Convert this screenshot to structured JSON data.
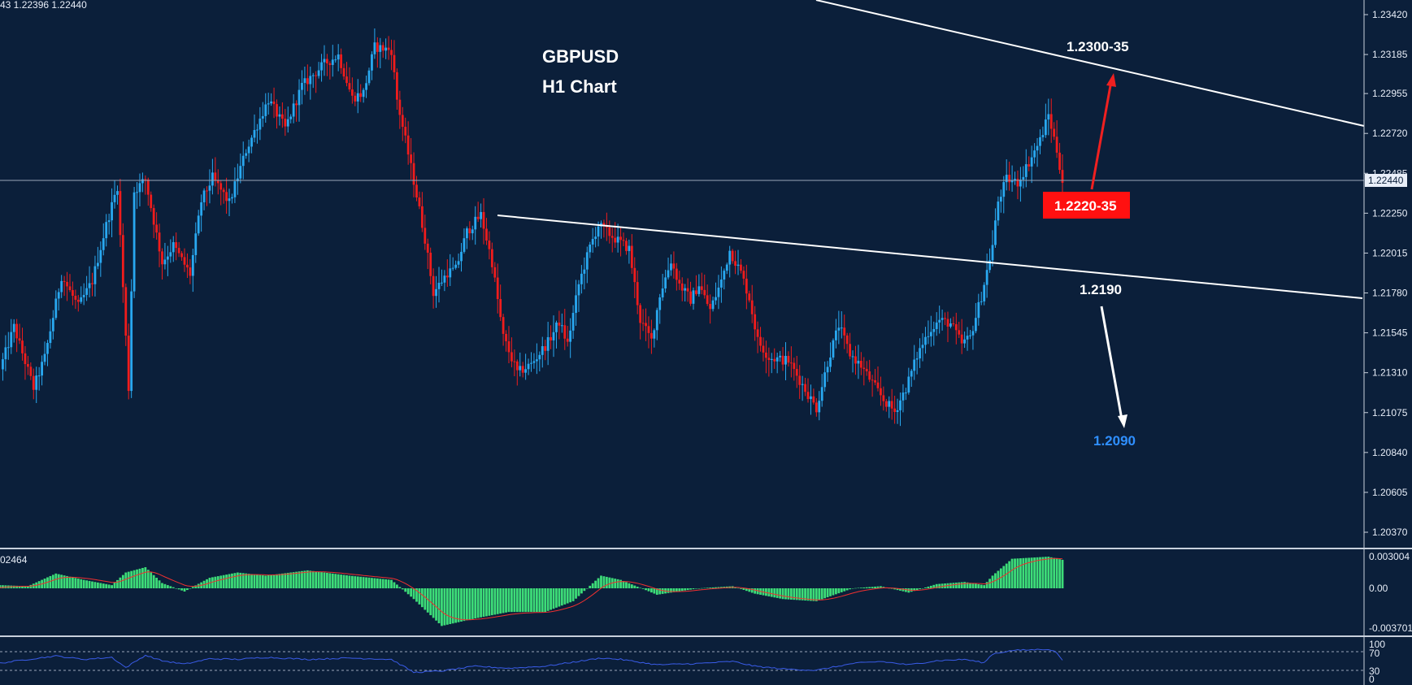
{
  "header": {
    "ohlc_text": "43 1.22396 1.22440"
  },
  "title": {
    "symbol": "GBPUSD",
    "timeframe": "H1 Chart"
  },
  "annotations": {
    "upper_target": "1.2300-35",
    "current_zone": "1.2220-35",
    "support": "1.2190",
    "lower_target": "1.2090"
  },
  "colors": {
    "background": "#0b1f3a",
    "bull": "#29a8f0",
    "bear": "#f01c1c",
    "trendline": "#ffffff",
    "histogram": "#3ddc78",
    "signal": "#f03030",
    "rsi": "#3a5ce8",
    "lower_target_text": "#2f8fff",
    "zone_box": "#ff1010"
  },
  "chart_data": {
    "type": "candlestick",
    "title": "GBPUSD H1 Chart",
    "current_price": "1.22440",
    "price_ticks": [
      "1.23420",
      "1.23185",
      "1.22955",
      "1.22720",
      "1.22485",
      "1.22250",
      "1.22015",
      "1.21780",
      "1.21545",
      "1.21310",
      "1.21075",
      "1.20840",
      "1.20605",
      "1.20370"
    ],
    "ylim": [
      1.2025,
      1.2355
    ],
    "path_points": [
      [
        0,
        1.2133
      ],
      [
        5,
        1.2158
      ],
      [
        12,
        1.2122
      ],
      [
        16,
        1.214
      ],
      [
        22,
        1.2188
      ],
      [
        28,
        1.217
      ],
      [
        33,
        1.2185
      ],
      [
        38,
        1.2218
      ],
      [
        42,
        1.2241
      ],
      [
        46,
        1.2122
      ],
      [
        48,
        1.2238
      ],
      [
        52,
        1.2245
      ],
      [
        58,
        1.2196
      ],
      [
        62,
        1.2206
      ],
      [
        68,
        1.2189
      ],
      [
        72,
        1.2232
      ],
      [
        76,
        1.2246
      ],
      [
        82,
        1.2231
      ],
      [
        88,
        1.2262
      ],
      [
        96,
        1.2292
      ],
      [
        102,
        1.2275
      ],
      [
        108,
        1.23
      ],
      [
        116,
        1.2313
      ],
      [
        121,
        1.2318
      ],
      [
        126,
        1.2293
      ],
      [
        130,
        1.2296
      ],
      [
        134,
        1.2323
      ],
      [
        140,
        1.2321
      ],
      [
        142,
        1.2292
      ],
      [
        148,
        1.2244
      ],
      [
        152,
        1.221
      ],
      [
        155,
        1.2178
      ],
      [
        160,
        1.219
      ],
      [
        163,
        1.2192
      ],
      [
        167,
        1.2214
      ],
      [
        172,
        1.2224
      ],
      [
        176,
        1.2196
      ],
      [
        180,
        1.2152
      ],
      [
        185,
        1.2131
      ],
      [
        190,
        1.2136
      ],
      [
        196,
        1.2149
      ],
      [
        200,
        1.2161
      ],
      [
        203,
        1.2148
      ],
      [
        207,
        1.2183
      ],
      [
        211,
        1.2205
      ],
      [
        214,
        1.2218
      ],
      [
        220,
        1.221
      ],
      [
        225,
        1.2204
      ],
      [
        229,
        1.2162
      ],
      [
        233,
        1.215
      ],
      [
        236,
        1.2177
      ],
      [
        240,
        1.2197
      ],
      [
        243,
        1.2183
      ],
      [
        247,
        1.2174
      ],
      [
        250,
        1.2183
      ],
      [
        254,
        1.2168
      ],
      [
        258,
        1.2185
      ],
      [
        261,
        1.2203
      ],
      [
        265,
        1.219
      ],
      [
        268,
        1.2175
      ],
      [
        271,
        1.215
      ],
      [
        275,
        1.214
      ],
      [
        282,
        1.2138
      ],
      [
        288,
        1.2121
      ],
      [
        292,
        1.211
      ],
      [
        296,
        1.2137
      ],
      [
        300,
        1.2159
      ],
      [
        304,
        1.2142
      ],
      [
        308,
        1.2135
      ],
      [
        312,
        1.2125
      ],
      [
        316,
        1.2115
      ],
      [
        320,
        1.2108
      ],
      [
        324,
        1.2122
      ],
      [
        328,
        1.2141
      ],
      [
        332,
        1.2155
      ],
      [
        336,
        1.2162
      ],
      [
        340,
        1.216
      ],
      [
        344,
        1.2148
      ],
      [
        347,
        1.2152
      ],
      [
        351,
        1.2176
      ],
      [
        355,
        1.2206
      ],
      [
        357,
        1.2232
      ],
      [
        360,
        1.2245
      ],
      [
        364,
        1.2243
      ],
      [
        368,
        1.2255
      ],
      [
        372,
        1.2268
      ],
      [
        375,
        1.2283
      ],
      [
        378,
        1.2262
      ],
      [
        380,
        1.2244
      ]
    ],
    "trendlines": [
      {
        "name": "upper",
        "points": [
          [
            1015,
            -0.005
          ],
          [
            1737,
            0.218
          ]
        ]
      },
      {
        "name": "support",
        "points": [
          [
            612,
            0.392
          ],
          [
            1676,
            0.543
          ]
        ]
      }
    ],
    "macd": {
      "label": "02464",
      "ticks": [
        "0.003004",
        "0.00",
        "-0.003701"
      ],
      "ylim": [
        -0.0039,
        0.0035
      ],
      "path_points": [
        [
          0,
          0.0003
        ],
        [
          10,
          0.0002
        ],
        [
          20,
          0.0014
        ],
        [
          30,
          0.0008
        ],
        [
          40,
          0.0003
        ],
        [
          45,
          0.0015
        ],
        [
          52,
          0.002
        ],
        [
          58,
          0.0005
        ],
        [
          66,
          -0.0003
        ],
        [
          75,
          0.001
        ],
        [
          85,
          0.0015
        ],
        [
          95,
          0.0012
        ],
        [
          110,
          0.0017
        ],
        [
          125,
          0.0012
        ],
        [
          140,
          0.0008
        ],
        [
          148,
          -0.001
        ],
        [
          158,
          -0.0035
        ],
        [
          170,
          -0.0028
        ],
        [
          182,
          -0.0022
        ],
        [
          195,
          -0.0022
        ],
        [
          205,
          -0.0012
        ],
        [
          215,
          0.0012
        ],
        [
          222,
          0.0008
        ],
        [
          235,
          -0.0006
        ],
        [
          250,
          0.0
        ],
        [
          262,
          0.0002
        ],
        [
          270,
          -0.0005
        ],
        [
          280,
          -0.001
        ],
        [
          292,
          -0.0012
        ],
        [
          305,
          0.0
        ],
        [
          315,
          0.0002
        ],
        [
          325,
          -0.0004
        ],
        [
          335,
          0.0004
        ],
        [
          345,
          0.0006
        ],
        [
          352,
          0.0003
        ],
        [
          355,
          0.0012
        ],
        [
          362,
          0.0028
        ],
        [
          375,
          0.003
        ],
        [
          380,
          0.0027
        ]
      ]
    },
    "rsi": {
      "ticks": [
        "100",
        "70",
        "30",
        "0"
      ],
      "levels": [
        70,
        30
      ],
      "ylim": [
        0,
        100
      ],
      "path_points": [
        [
          0,
          45
        ],
        [
          10,
          56
        ],
        [
          20,
          66
        ],
        [
          30,
          56
        ],
        [
          40,
          62
        ],
        [
          45,
          32
        ],
        [
          52,
          68
        ],
        [
          58,
          52
        ],
        [
          66,
          42
        ],
        [
          75,
          58
        ],
        [
          85,
          56
        ],
        [
          95,
          62
        ],
        [
          110,
          56
        ],
        [
          125,
          60
        ],
        [
          140,
          56
        ],
        [
          148,
          18
        ],
        [
          158,
          22
        ],
        [
          170,
          36
        ],
        [
          182,
          30
        ],
        [
          195,
          36
        ],
        [
          205,
          48
        ],
        [
          215,
          60
        ],
        [
          222,
          56
        ],
        [
          235,
          40
        ],
        [
          250,
          44
        ],
        [
          262,
          50
        ],
        [
          270,
          36
        ],
        [
          280,
          28
        ],
        [
          292,
          24
        ],
        [
          305,
          44
        ],
        [
          315,
          50
        ],
        [
          325,
          40
        ],
        [
          335,
          52
        ],
        [
          345,
          56
        ],
        [
          352,
          46
        ],
        [
          355,
          72
        ],
        [
          362,
          82
        ],
        [
          375,
          86
        ],
        [
          378,
          76
        ],
        [
          380,
          52
        ]
      ]
    }
  }
}
